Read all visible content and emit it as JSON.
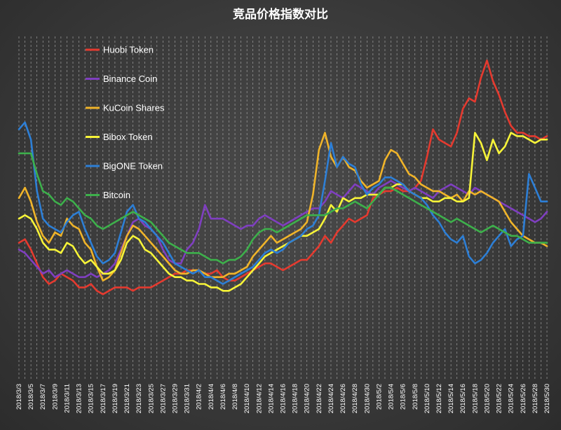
{
  "chart_data": {
    "type": "line",
    "title": "竞品价格指数对比",
    "xlabel": "",
    "ylabel": "",
    "grid": true,
    "legend_position": "top-left",
    "x": [
      "2018/3/3",
      "2018/3/4",
      "2018/3/5",
      "2018/3/6",
      "2018/3/7",
      "2018/3/8",
      "2018/3/9",
      "2018/3/10",
      "2018/3/11",
      "2018/3/12",
      "2018/3/13",
      "2018/3/14",
      "2018/3/15",
      "2018/3/16",
      "2018/3/17",
      "2018/3/18",
      "2018/3/19",
      "2018/3/20",
      "2018/3/21",
      "2018/3/22",
      "2018/3/23",
      "2018/3/24",
      "2018/3/25",
      "2018/3/26",
      "2018/3/27",
      "2018/3/28",
      "2018/3/29",
      "2018/3/30",
      "2018/3/31",
      "2018/4/1",
      "2018/4/2",
      "2018/4/3",
      "2018/4/4",
      "2018/4/5",
      "2018/4/6",
      "2018/4/7",
      "2018/4/8",
      "2018/4/9",
      "2018/4/10",
      "2018/4/11",
      "2018/4/12",
      "2018/4/13",
      "2018/4/14",
      "2018/4/15",
      "2018/4/16",
      "2018/4/17",
      "2018/4/18",
      "2018/4/19",
      "2018/4/20",
      "2018/4/21",
      "2018/4/22",
      "2018/4/23",
      "2018/4/24",
      "2018/4/25",
      "2018/4/26",
      "2018/4/27",
      "2018/4/28",
      "2018/4/29",
      "2018/4/30",
      "2018/5/1",
      "2018/5/2",
      "2018/5/3",
      "2018/5/4",
      "2018/5/5",
      "2018/5/6",
      "2018/5/7",
      "2018/5/8",
      "2018/5/9",
      "2018/5/10",
      "2018/5/11",
      "2018/5/12",
      "2018/5/13",
      "2018/5/14",
      "2018/5/15",
      "2018/5/16",
      "2018/5/17",
      "2018/5/18",
      "2018/5/19",
      "2018/5/20",
      "2018/5/21",
      "2018/5/22",
      "2018/5/23",
      "2018/5/24",
      "2018/5/25",
      "2018/5/26",
      "2018/5/27",
      "2018/5/28",
      "2018/5/29",
      "2018/5/30"
    ],
    "tick_labels": [
      "2018/3/3",
      "2018/3/5",
      "2018/3/7",
      "2018/3/9",
      "2018/3/11",
      "2018/3/13",
      "2018/3/15",
      "2018/3/17",
      "2018/3/19",
      "2018/3/21",
      "2018/3/23",
      "2018/3/25",
      "2018/3/27",
      "2018/3/29",
      "2018/3/31",
      "2018/4/2",
      "2018/4/4",
      "2018/4/6",
      "2018/4/8",
      "2018/4/10",
      "2018/4/12",
      "2018/4/14",
      "2018/4/16",
      "2018/4/18",
      "2018/4/20",
      "2018/4/22",
      "2018/4/24",
      "2018/4/26",
      "2018/4/28",
      "2018/4/30",
      "2018/5/2",
      "2018/5/4",
      "2018/5/6",
      "2018/5/8",
      "2018/5/10",
      "2018/5/12",
      "2018/5/14",
      "2018/5/16",
      "2018/5/18",
      "2018/5/20",
      "2018/5/22",
      "2018/5/24",
      "2018/5/26",
      "2018/5/28",
      "2018/5/30"
    ],
    "ylim": [
      0,
      100
    ],
    "series": [
      {
        "name": "Huobi Token",
        "color": "#e53a2f",
        "values": [
          40,
          41,
          38,
          34,
          30,
          28,
          29,
          31,
          30,
          29,
          27,
          27,
          28,
          26,
          25,
          26,
          27,
          27,
          27,
          26,
          27,
          27,
          27,
          28,
          29,
          30,
          31,
          31,
          32,
          32,
          32,
          31,
          31,
          32,
          30,
          29,
          29,
          30,
          31,
          32,
          33,
          34,
          34,
          33,
          32,
          33,
          34,
          35,
          35,
          37,
          39,
          42,
          40,
          43,
          45,
          47,
          46,
          47,
          48,
          53,
          54,
          55,
          55,
          56,
          55,
          55,
          56,
          58,
          65,
          73,
          70,
          69,
          68,
          72,
          79,
          82,
          81,
          88,
          93,
          87,
          83,
          78,
          74,
          72,
          72,
          71,
          71,
          70,
          71
        ]
      },
      {
        "name": "Binance Coin",
        "color": "#7f3fc0",
        "values": [
          38,
          37,
          35,
          33,
          31,
          32,
          30,
          31,
          32,
          31,
          30,
          30,
          31,
          30,
          31,
          32,
          34,
          38,
          42,
          46,
          47,
          45,
          44,
          42,
          38,
          35,
          34,
          34,
          38,
          40,
          44,
          51,
          47,
          47,
          47,
          46,
          45,
          44,
          45,
          45,
          47,
          48,
          47,
          46,
          45,
          46,
          47,
          48,
          49,
          50,
          50,
          52,
          55,
          54,
          53,
          55,
          57,
          56,
          55,
          54,
          56,
          57,
          58,
          57,
          56,
          55,
          56,
          55,
          54,
          53,
          55,
          56,
          57,
          56,
          55,
          54,
          56,
          55,
          54,
          53,
          52,
          51,
          50,
          49,
          48,
          47,
          46,
          47,
          49
        ]
      },
      {
        "name": "KuCoin Shares",
        "color": "#f0b429",
        "values": [
          53,
          56,
          52,
          46,
          42,
          40,
          43,
          42,
          47,
          45,
          44,
          40,
          38,
          33,
          29,
          30,
          32,
          37,
          42,
          45,
          44,
          42,
          40,
          38,
          36,
          34,
          32,
          31,
          31,
          32,
          32,
          31,
          30,
          30,
          30,
          31,
          31,
          32,
          33,
          36,
          38,
          40,
          42,
          40,
          41,
          42,
          43,
          44,
          46,
          54,
          67,
          72,
          65,
          62,
          65,
          62,
          61,
          58,
          56,
          57,
          58,
          64,
          67,
          66,
          63,
          60,
          59,
          57,
          56,
          55,
          55,
          54,
          53,
          54,
          52,
          55,
          54,
          55,
          54,
          53,
          52,
          49,
          46,
          44,
          42,
          41,
          40,
          40,
          39
        ]
      },
      {
        "name": "Bibox Token",
        "color": "#f7f438",
        "values": [
          47,
          48,
          47,
          44,
          40,
          38,
          38,
          37,
          40,
          39,
          36,
          34,
          35,
          33,
          31,
          31,
          32,
          35,
          40,
          42,
          41,
          38,
          37,
          35,
          33,
          31,
          30,
          30,
          29,
          29,
          28,
          28,
          27,
          27,
          26,
          26,
          27,
          28,
          30,
          32,
          34,
          36,
          37,
          38,
          39,
          40,
          41,
          42,
          42,
          43,
          44,
          47,
          51,
          49,
          53,
          52,
          53,
          53,
          54,
          54,
          54,
          56,
          56,
          57,
          57,
          55,
          54,
          53,
          53,
          52,
          52,
          53,
          53,
          52,
          52,
          53,
          72,
          69,
          64,
          70,
          66,
          68,
          72,
          71,
          71,
          70,
          69,
          70,
          70
        ]
      },
      {
        "name": "BigONE Token",
        "color": "#2d7fd6",
        "values": [
          73,
          75,
          70,
          55,
          47,
          45,
          44,
          43,
          46,
          48,
          49,
          44,
          40,
          36,
          34,
          35,
          37,
          43,
          49,
          51,
          47,
          46,
          44,
          42,
          40,
          37,
          34,
          33,
          32,
          31,
          32,
          30,
          30,
          29,
          28,
          29,
          30,
          31,
          32,
          33,
          35,
          37,
          38,
          37,
          38,
          40,
          41,
          42,
          44,
          45,
          48,
          58,
          69,
          62,
          65,
          63,
          62,
          57,
          54,
          56,
          57,
          59,
          59,
          58,
          57,
          55,
          54,
          53,
          51,
          48,
          46,
          43,
          41,
          40,
          42,
          36,
          34,
          35,
          37,
          40,
          42,
          44,
          39,
          41,
          42,
          60,
          56,
          52,
          52
        ]
      },
      {
        "name": "Bitcoin",
        "color": "#3db04b",
        "values": [
          66,
          66,
          66,
          60,
          55,
          54,
          52,
          51,
          53,
          52,
          50,
          48,
          47,
          45,
          44,
          45,
          46,
          47,
          48,
          49,
          48,
          47,
          46,
          44,
          42,
          40,
          39,
          38,
          37,
          37,
          37,
          36,
          35,
          35,
          34,
          35,
          35,
          36,
          38,
          41,
          43,
          44,
          44,
          43,
          44,
          45,
          46,
          47,
          48,
          48,
          48,
          48,
          49,
          50,
          50,
          51,
          52,
          51,
          50,
          52,
          54,
          56,
          56,
          55,
          54,
          53,
          52,
          51,
          50,
          49,
          48,
          47,
          46,
          47,
          46,
          45,
          44,
          43,
          44,
          45,
          44,
          43,
          42,
          42,
          41,
          40,
          40,
          40,
          40
        ]
      }
    ]
  }
}
